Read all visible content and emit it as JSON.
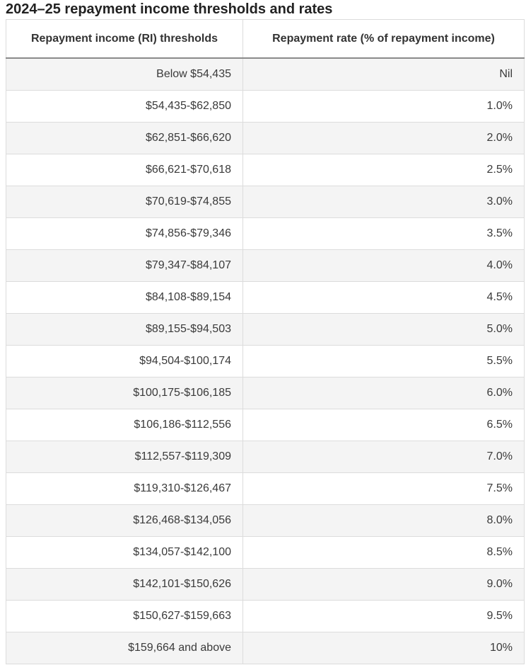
{
  "title": "2024–25 repayment income thresholds and rates",
  "table": {
    "headers": [
      "Repayment income (RI) thresholds",
      "Repayment rate (% of repayment income)"
    ],
    "rows": [
      {
        "threshold": "Below $54,435",
        "rate": "Nil"
      },
      {
        "threshold": "$54,435-$62,850",
        "rate": "1.0%"
      },
      {
        "threshold": "$62,851-$66,620",
        "rate": "2.0%"
      },
      {
        "threshold": "$66,621-$70,618",
        "rate": "2.5%"
      },
      {
        "threshold": "$70,619-$74,855",
        "rate": "3.0%"
      },
      {
        "threshold": "$74,856-$79,346",
        "rate": "3.5%"
      },
      {
        "threshold": "$79,347-$84,107",
        "rate": "4.0%"
      },
      {
        "threshold": "$84,108-$89,154",
        "rate": "4.5%"
      },
      {
        "threshold": "$89,155-$94,503",
        "rate": "5.0%"
      },
      {
        "threshold": "$94,504-$100,174",
        "rate": "5.5%"
      },
      {
        "threshold": "$100,175-$106,185",
        "rate": "6.0%"
      },
      {
        "threshold": "$106,186-$112,556",
        "rate": "6.5%"
      },
      {
        "threshold": "$112,557-$119,309",
        "rate": "7.0%"
      },
      {
        "threshold": "$119,310-$126,467",
        "rate": "7.5%"
      },
      {
        "threshold": "$126,468-$134,056",
        "rate": "8.0%"
      },
      {
        "threshold": "$134,057-$142,100",
        "rate": "8.5%"
      },
      {
        "threshold": "$142,101-$150,626",
        "rate": "9.0%"
      },
      {
        "threshold": "$150,627-$159,663",
        "rate": "9.5%"
      },
      {
        "threshold": "$159,664 and above",
        "rate": "10%"
      }
    ]
  }
}
